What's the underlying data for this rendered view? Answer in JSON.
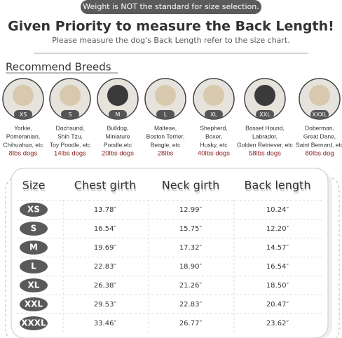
{
  "banner": "Weight is NOT the standard for size selection.",
  "title": "Given Priority to measure the Back Length!",
  "subtitle": "Please measure the dog's Back Length refer to the size chart.",
  "breeds_heading": "Recommend Breeds",
  "breeds": [
    {
      "size": "XS",
      "lines": [
        "Yorkie,",
        "Pomeranian,",
        "Chihuahua, etc"
      ],
      "weight": "8lbs dogs"
    },
    {
      "size": "S",
      "lines": [
        "Dachsund,",
        "Shih Tzu,",
        "Toy Poodle, etc"
      ],
      "weight": "14lbs dogs"
    },
    {
      "size": "M",
      "lines": [
        "Bulldog,",
        "Miniature",
        "Poodle,etc"
      ],
      "weight": "20lbs dogs"
    },
    {
      "size": "L",
      "lines": [
        "Maltese,",
        "Boston Terrier,",
        "Beagle, etc"
      ],
      "weight": "28lbs"
    },
    {
      "size": "XL",
      "lines": [
        "Shepherd,",
        "Boxer,",
        "Husky, etc"
      ],
      "weight": "40lbs dogs"
    },
    {
      "size": "XXL",
      "lines": [
        "Basset Hound,",
        "Labrador,",
        "Golden Retriever, etc"
      ],
      "weight": "58lbs dogs"
    },
    {
      "size": "XXXL",
      "lines": [
        "Doberman,",
        "Great Dane,",
        "Saint Bernard, etc"
      ],
      "weight": "80lbs dog"
    }
  ],
  "table": {
    "headers": [
      "Size",
      "Chest girth",
      "Neck girth",
      "Back length"
    ],
    "rows": [
      [
        "XS",
        "13.78″",
        "12.99″",
        "10.24″"
      ],
      [
        "S",
        "16.54″",
        "15.75″",
        "12.20″"
      ],
      [
        "M",
        "19.69″",
        "17.32″",
        "14.57″"
      ],
      [
        "L",
        "22.83″",
        "18.90″",
        "16.54″"
      ],
      [
        "XL",
        "26.38″",
        "21.26″",
        "18.50″"
      ],
      [
        "XXL",
        "29.53″",
        "22.83″",
        "20.47″"
      ],
      [
        "XXXL",
        "33.46″",
        "26.77″",
        "23.62″"
      ]
    ]
  }
}
